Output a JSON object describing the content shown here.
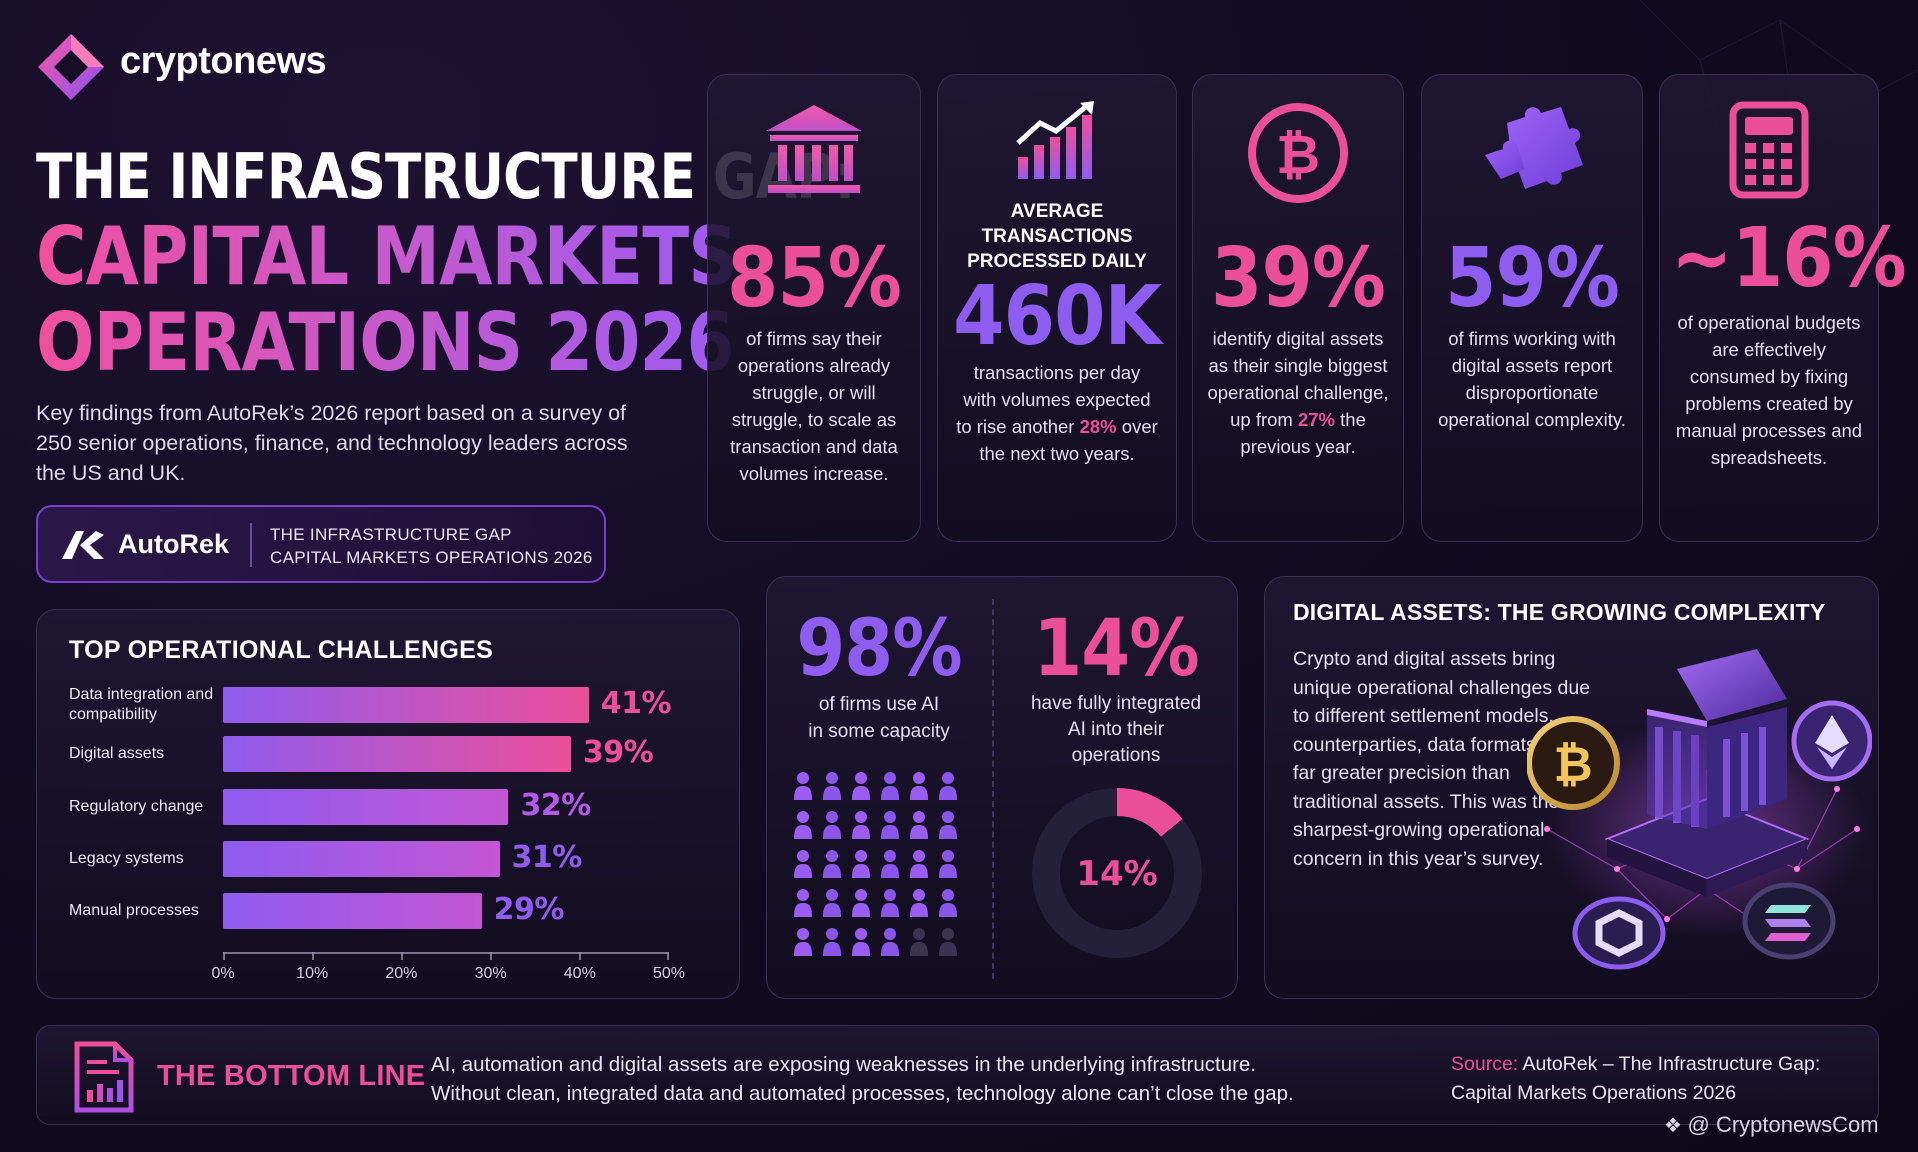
{
  "header": {
    "brand": "cryptonews",
    "title_line1": "THE INFRASTRUCTURE GAP:",
    "title_line2": "CAPITAL MARKETS",
    "title_line3": "OPERATIONS 2026",
    "subtitle": "Key findings from AutoRek’s 2026 report based on a survey of 250 senior operations, finance, and technology leaders across the US and UK."
  },
  "report_badge": {
    "name": "AutoRek",
    "line1": "THE INFRASTRUCTURE GAP",
    "line2": "CAPITAL MARKETS OPERATIONS 2026"
  },
  "stats": [
    {
      "icon": "bank-icon",
      "value": "85%",
      "text": "of firms say their operations already struggle, or will struggle, to scale as transaction and data volumes increase."
    },
    {
      "icon": "growth-chart-icon",
      "heading_line1": "AVERAGE",
      "heading_line2": "TRANSACTIONS",
      "heading_line3": "PROCESSED DAILY",
      "value": "460K",
      "text_before": "transactions per day with volumes expected to rise another ",
      "highlight": "28%",
      "text_after": " over the next two years."
    },
    {
      "icon": "bitcoin-icon",
      "value": "39%",
      "text_before": "identify digital assets as their single biggest operational challenge, up from ",
      "highlight": "27%",
      "text_after": " the previous year."
    },
    {
      "icon": "puzzle-icon",
      "value": "59%",
      "text": "of firms working with digital assets report disproportionate operational complexity."
    },
    {
      "icon": "calculator-icon",
      "value": "~16%",
      "text": "of operational budgets are effectively consumed by fixing problems created by manual processes and spreadsheets."
    }
  ],
  "challenges": {
    "title": "TOP OPERATIONAL CHALLENGES",
    "chart_data": {
      "type": "bar",
      "orientation": "horizontal",
      "title": "TOP OPERATIONAL CHALLENGES",
      "categories": [
        "Data integration and compatibility",
        "Digital assets",
        "Regulatory change",
        "Legacy systems",
        "Manual processes"
      ],
      "values": [
        41,
        39,
        32,
        31,
        29
      ],
      "value_labels": [
        "41%",
        "39%",
        "32%",
        "31%",
        "29%"
      ],
      "xlim": [
        0,
        50
      ],
      "xticks": [
        "0%",
        "10%",
        "20%",
        "30%",
        "40%",
        "50%"
      ],
      "colors": [
        "#ec4f9a",
        "#8f5cf0"
      ]
    }
  },
  "ai": {
    "left_value": "98%",
    "left_text_line1": "of firms use AI",
    "left_text_line2": "in some capacity",
    "people_total": 30,
    "people_filled": 28,
    "right_value": "14%",
    "right_text_line1": "have fully integrated",
    "right_text_line2": "AI into their",
    "right_text_line3": "operations",
    "donut_fraction": 0.14,
    "donut_label": "14%"
  },
  "digital_assets": {
    "title": "DIGITAL ASSETS: THE GROWING COMPLEXITY",
    "body": "Crypto and digital assets bring unique operational challenges due to different settlement models, counterparties, data formats, and far greater precision than traditional assets. This was the sharpest-growing operational concern in this year’s survey."
  },
  "bottom_line": {
    "title": "THE BOTTOM LINE",
    "text_line1": "AI, automation and digital assets are exposing weaknesses in the underlying infrastructure.",
    "text_line2": "Without clean, integrated data and automated processes, technology alone can’t close the gap.",
    "source_label": "Source:",
    "source_line1": " AutoRek – The Infrastructure Gap:",
    "source_line2": "Capital Markets Operations 2026"
  },
  "watermark": "@ CryptonewsCom",
  "colors": {
    "pink": "#ec4f9a",
    "purple": "#8f5cf0",
    "background": "#120c22"
  }
}
